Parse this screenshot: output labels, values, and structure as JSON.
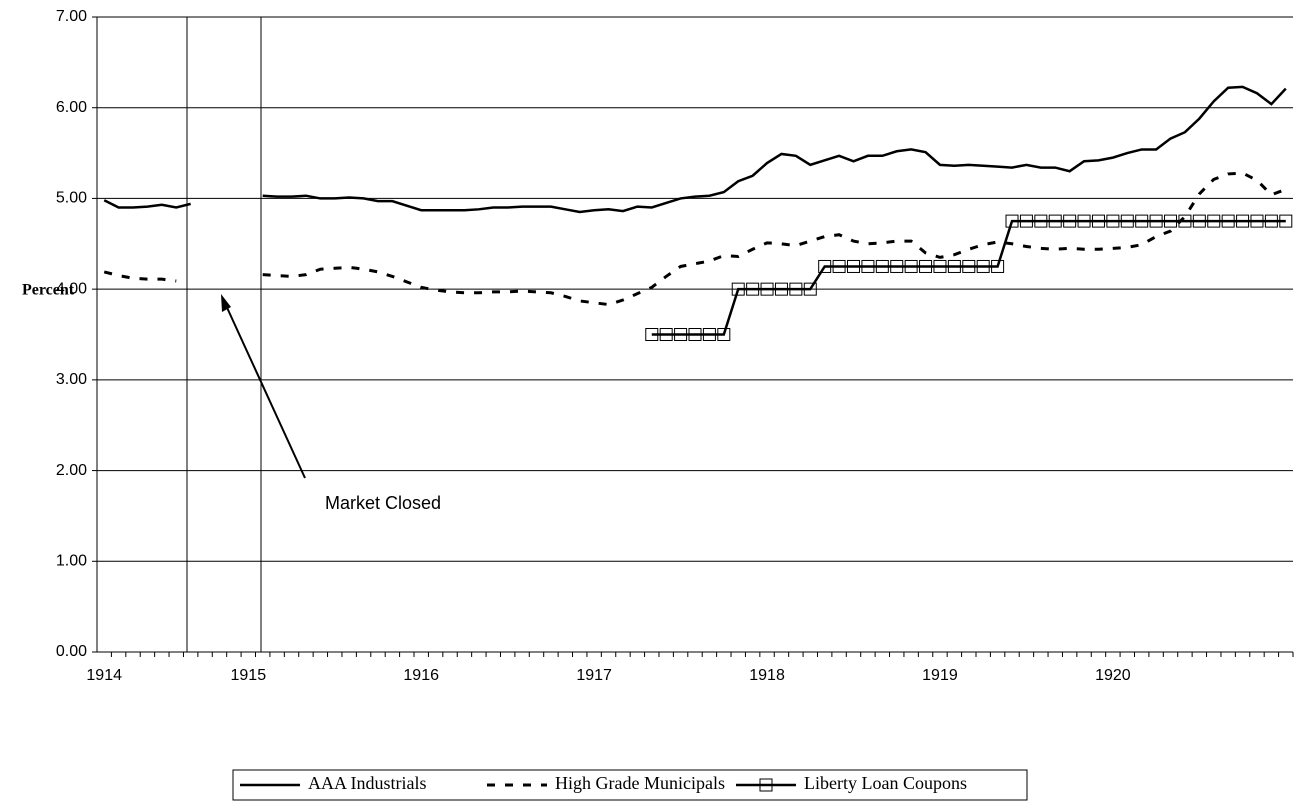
{
  "chart_data": {
    "type": "line",
    "y_label": "Percent",
    "annotation": "Market Closed",
    "categories": [
      "1914",
      null,
      null,
      null,
      null,
      null,
      null,
      null,
      null,
      null,
      "1915",
      null,
      null,
      null,
      null,
      null,
      null,
      null,
      null,
      null,
      null,
      null,
      "1916",
      null,
      null,
      null,
      null,
      null,
      null,
      null,
      null,
      null,
      null,
      null,
      "1917",
      null,
      null,
      null,
      null,
      null,
      null,
      null,
      null,
      null,
      null,
      null,
      "1918",
      null,
      null,
      null,
      null,
      null,
      null,
      null,
      null,
      null,
      null,
      null,
      "1919",
      null,
      null,
      null,
      null,
      null,
      null,
      null,
      null,
      null,
      null,
      null,
      "1920",
      null,
      null,
      null,
      null,
      null,
      null,
      null,
      null,
      null,
      null,
      null,
      null
    ],
    "ylim": [
      0,
      7
    ],
    "yticks": [
      {
        "value": 0,
        "label": "0.00"
      },
      {
        "value": 1,
        "label": "1.00"
      },
      {
        "value": 2,
        "label": "2.00"
      },
      {
        "value": 3,
        "label": "3.00"
      },
      {
        "value": 4,
        "label": "4.00"
      },
      {
        "value": 5,
        "label": "5.00"
      },
      {
        "value": 6,
        "label": "6.00"
      },
      {
        "value": 7,
        "label": "7.00"
      }
    ],
    "grid": true,
    "legend": "bottom",
    "series": [
      {
        "name": "AAA Industrials",
        "color": "#000000",
        "line_style": "solid",
        "values": [
          4.98,
          4.9,
          4.9,
          4.91,
          4.93,
          4.9,
          4.94,
          null,
          null,
          null,
          null,
          5.03,
          5.02,
          5.02,
          5.03,
          5.0,
          5.0,
          5.01,
          5.0,
          4.97,
          4.97,
          4.92,
          4.87,
          4.87,
          4.87,
          4.87,
          4.88,
          4.9,
          4.9,
          4.91,
          4.91,
          4.91,
          4.88,
          4.85,
          4.87,
          4.88,
          4.86,
          4.91,
          4.9,
          4.95,
          5.0,
          5.02,
          5.03,
          5.07,
          5.19,
          5.25,
          5.39,
          5.49,
          5.47,
          5.37,
          5.42,
          5.47,
          5.41,
          5.47,
          5.47,
          5.52,
          5.54,
          5.51,
          5.37,
          5.36,
          5.37,
          5.36,
          5.35,
          5.34,
          5.37,
          5.34,
          5.34,
          5.3,
          5.41,
          5.42,
          5.45,
          5.5,
          5.54,
          5.54,
          5.66,
          5.73,
          5.88,
          6.07,
          6.22,
          6.23,
          6.16,
          6.04,
          6.21
        ]
      },
      {
        "name": "High Grade Municipals",
        "color": "#000000",
        "line_style": "dashed",
        "values": [
          4.19,
          4.15,
          4.12,
          4.11,
          4.11,
          4.09,
          null,
          null,
          null,
          null,
          null,
          4.16,
          4.15,
          4.14,
          4.16,
          4.22,
          4.23,
          4.24,
          4.22,
          4.19,
          4.14,
          4.08,
          4.02,
          3.99,
          3.97,
          3.96,
          3.96,
          3.97,
          3.97,
          3.98,
          3.97,
          3.96,
          3.92,
          3.87,
          3.85,
          3.83,
          3.88,
          3.95,
          4.02,
          4.14,
          4.25,
          4.28,
          4.31,
          4.37,
          4.36,
          4.44,
          4.51,
          4.5,
          4.48,
          4.53,
          4.58,
          4.6,
          4.53,
          4.5,
          4.51,
          4.53,
          4.53,
          4.4,
          4.35,
          4.38,
          4.44,
          4.49,
          4.52,
          4.5,
          4.47,
          4.45,
          4.44,
          4.45,
          4.44,
          4.44,
          4.45,
          4.46,
          4.49,
          4.58,
          4.64,
          4.8,
          5.05,
          5.21,
          5.27,
          5.28,
          5.2,
          5.04,
          5.1
        ]
      },
      {
        "name": "Liberty Loan Coupons",
        "color": "#000000",
        "line_style": "solid",
        "marker": "square",
        "values": [
          null,
          null,
          null,
          null,
          null,
          null,
          null,
          null,
          null,
          null,
          null,
          null,
          null,
          null,
          null,
          null,
          null,
          null,
          null,
          null,
          null,
          null,
          null,
          null,
          null,
          null,
          null,
          null,
          null,
          null,
          null,
          null,
          null,
          null,
          null,
          null,
          null,
          null,
          3.5,
          3.5,
          3.5,
          3.5,
          3.5,
          3.5,
          4.0,
          4.0,
          4.0,
          4.0,
          4.0,
          4.0,
          4.25,
          4.25,
          4.25,
          4.25,
          4.25,
          4.25,
          4.25,
          4.25,
          4.25,
          4.25,
          4.25,
          4.25,
          4.25,
          4.75,
          4.75,
          4.75,
          4.75,
          4.75,
          4.75,
          4.75,
          4.75,
          4.75,
          4.75,
          4.75,
          4.75,
          4.75,
          4.75,
          4.75,
          4.75,
          4.75,
          4.75,
          4.75,
          4.75
        ]
      }
    ]
  }
}
